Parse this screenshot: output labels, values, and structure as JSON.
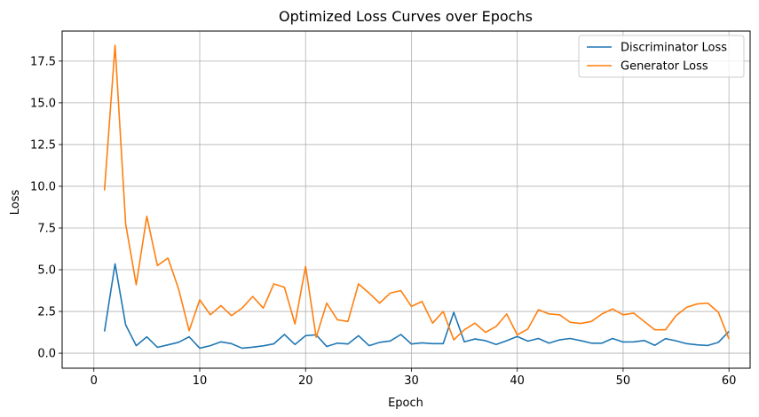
{
  "chart_data": {
    "type": "line",
    "title": "Optimized Loss Curves over Epochs",
    "xlabel": "Epoch",
    "ylabel": "Loss",
    "xlim": [
      -3,
      62
    ],
    "ylim": [
      -0.9,
      19.3
    ],
    "xticks": [
      0,
      10,
      20,
      30,
      40,
      50,
      60
    ],
    "yticks": [
      0.0,
      2.5,
      5.0,
      7.5,
      10.0,
      12.5,
      15.0,
      17.5
    ],
    "ytick_labels": [
      "0.0",
      "2.5",
      "5.0",
      "7.5",
      "10.0",
      "12.5",
      "15.0",
      "17.5"
    ],
    "grid": true,
    "legend_position": "top-right",
    "x": [
      1,
      2,
      3,
      4,
      5,
      6,
      7,
      8,
      9,
      10,
      11,
      12,
      13,
      14,
      15,
      16,
      17,
      18,
      19,
      20,
      21,
      22,
      23,
      24,
      25,
      26,
      27,
      28,
      29,
      30,
      31,
      32,
      33,
      34,
      35,
      36,
      37,
      38,
      39,
      40,
      41,
      42,
      43,
      44,
      45,
      46,
      47,
      48,
      49,
      50,
      51,
      52,
      53,
      54,
      55,
      56,
      57,
      58,
      59,
      60
    ],
    "series": [
      {
        "name": "Discriminator Loss",
        "color": "#1f77b4",
        "values": [
          1.3,
          5.35,
          1.7,
          0.45,
          0.98,
          0.35,
          0.5,
          0.65,
          0.98,
          0.3,
          0.45,
          0.68,
          0.57,
          0.3,
          0.36,
          0.44,
          0.56,
          1.12,
          0.52,
          1.05,
          1.1,
          0.4,
          0.6,
          0.55,
          1.05,
          0.45,
          0.65,
          0.73,
          1.12,
          0.55,
          0.62,
          0.57,
          0.57,
          2.45,
          0.68,
          0.85,
          0.75,
          0.52,
          0.75,
          1.0,
          0.72,
          0.88,
          0.6,
          0.8,
          0.88,
          0.75,
          0.6,
          0.6,
          0.88,
          0.67,
          0.68,
          0.76,
          0.47,
          0.87,
          0.74,
          0.57,
          0.5,
          0.46,
          0.65,
          1.3
        ]
      },
      {
        "name": "Generator Loss",
        "color": "#ff7f0e",
        "values": [
          9.75,
          18.45,
          7.75,
          4.1,
          8.2,
          5.25,
          5.7,
          3.85,
          1.35,
          3.2,
          2.3,
          2.85,
          2.25,
          2.7,
          3.4,
          2.7,
          4.15,
          3.95,
          1.75,
          5.2,
          0.95,
          3.0,
          2.0,
          1.9,
          4.15,
          3.6,
          3.0,
          3.6,
          3.75,
          2.8,
          3.1,
          1.8,
          2.5,
          0.8,
          1.4,
          1.8,
          1.25,
          1.6,
          2.35,
          1.1,
          1.45,
          2.6,
          2.35,
          2.3,
          1.85,
          1.78,
          1.9,
          2.35,
          2.65,
          2.3,
          2.4,
          1.9,
          1.4,
          1.4,
          2.25,
          2.75,
          2.95,
          3.0,
          2.45,
          0.85
        ]
      }
    ]
  }
}
